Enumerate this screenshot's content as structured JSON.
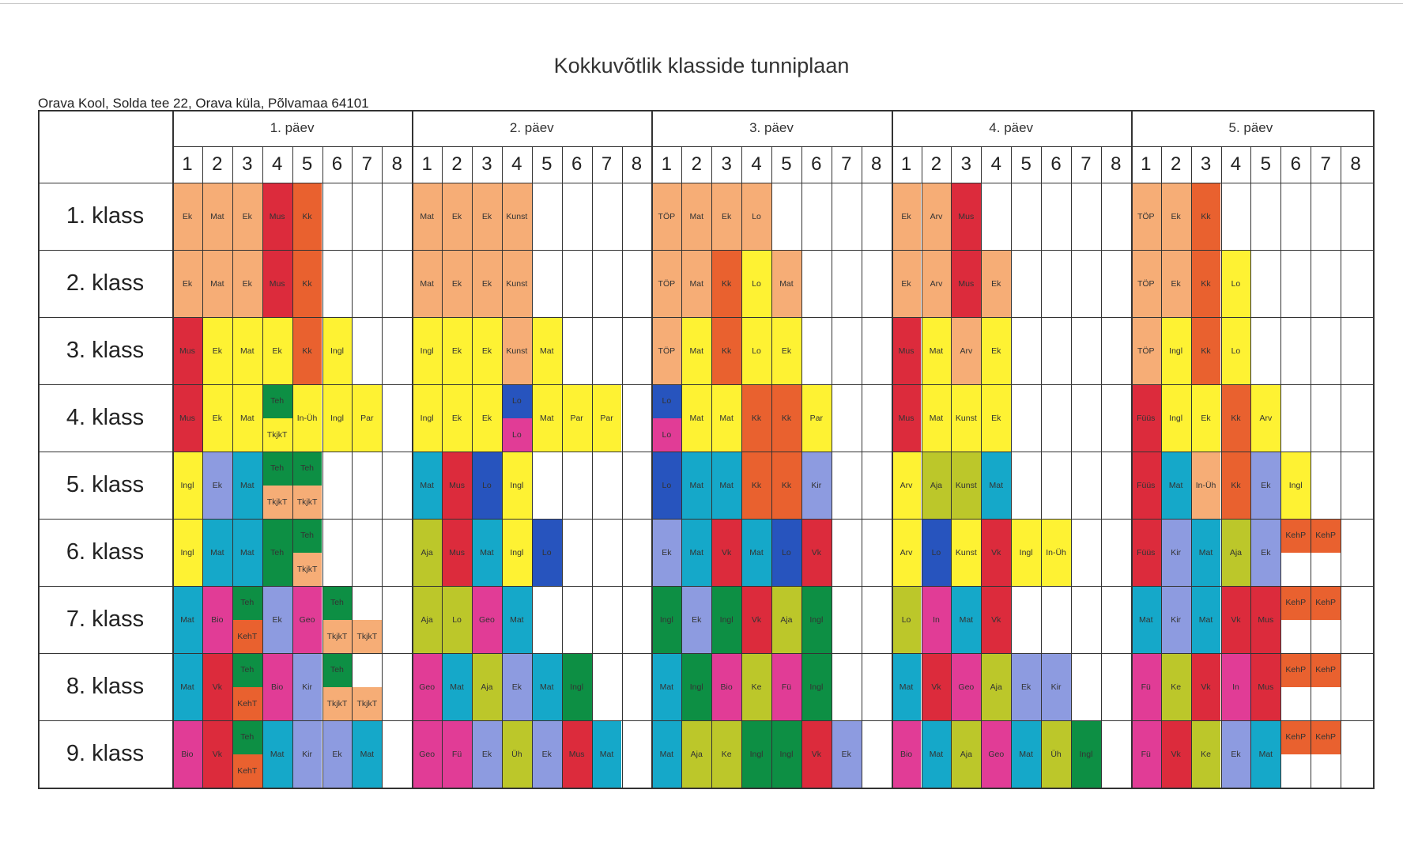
{
  "title": "Kokkuvõtlik klasside tunniplaan",
  "subtitle": "Orava Kool, Solda tee 22, Orava küla, Põlvamaa 64101",
  "days": [
    "1. päev",
    "2. päev",
    "3. päev",
    "4. päev",
    "5. päev"
  ],
  "periods": [
    "1",
    "2",
    "3",
    "4",
    "5",
    "6",
    "7",
    "8"
  ],
  "classes": [
    "1. klass",
    "2. klass",
    "3. klass",
    "4. klass",
    "5. klass",
    "6. klass",
    "7. klass",
    "8. klass",
    "9. klass"
  ],
  "palette": {
    "o": "#f6ad76",
    "y": "#fef233",
    "r": "#dc2b3c",
    "d": "#e9612f",
    "t": "#15a8c9",
    "l": "#8d9be0",
    "b": "#2754be",
    "g": "#0d8f44",
    "m": "#e13c96",
    "k": "#bcc72a"
  },
  "schedule": [
    [
      [
        [
          "Ek",
          "o"
        ],
        [
          "Mat",
          "o"
        ],
        [
          "Ek",
          "o"
        ],
        [
          "Mus",
          "r"
        ],
        [
          "Kk",
          "d"
        ],
        null,
        null,
        null
      ],
      [
        [
          "Mat",
          "o"
        ],
        [
          "Ek",
          "o"
        ],
        [
          "Ek",
          "o"
        ],
        [
          "Kunst",
          "o"
        ],
        null,
        null,
        null,
        null
      ],
      [
        [
          "TÖP",
          "o"
        ],
        [
          "Mat",
          "o"
        ],
        [
          "Ek",
          "o"
        ],
        [
          "Lo",
          "o"
        ],
        null,
        null,
        null,
        null
      ],
      [
        [
          "Ek",
          "o"
        ],
        [
          "Arv",
          "o"
        ],
        [
          "Mus",
          "r"
        ],
        null,
        null,
        null,
        null,
        null
      ],
      [
        [
          "TÖP",
          "o"
        ],
        [
          "Ek",
          "o"
        ],
        [
          "Kk",
          "d"
        ],
        null,
        null,
        null,
        null,
        null
      ]
    ],
    [
      [
        [
          "Ek",
          "o"
        ],
        [
          "Mat",
          "o"
        ],
        [
          "Ek",
          "o"
        ],
        [
          "Mus",
          "r"
        ],
        [
          "Kk",
          "d"
        ],
        null,
        null,
        null
      ],
      [
        [
          "Mat",
          "o"
        ],
        [
          "Ek",
          "o"
        ],
        [
          "Ek",
          "o"
        ],
        [
          "Kunst",
          "o"
        ],
        null,
        null,
        null,
        null
      ],
      [
        [
          "TÖP",
          "o"
        ],
        [
          "Mat",
          "o"
        ],
        [
          "Kk",
          "d"
        ],
        [
          "Lo",
          "y"
        ],
        [
          "Mat",
          "o"
        ],
        null,
        null,
        null
      ],
      [
        [
          "Ek",
          "o"
        ],
        [
          "Arv",
          "o"
        ],
        [
          "Mus",
          "r"
        ],
        [
          "Ek",
          "o"
        ],
        null,
        null,
        null,
        null
      ],
      [
        [
          "TÖP",
          "o"
        ],
        [
          "Ek",
          "o"
        ],
        [
          "Kk",
          "d"
        ],
        [
          "Lo",
          "y"
        ],
        null,
        null,
        null,
        null
      ]
    ],
    [
      [
        [
          "Mus",
          "r"
        ],
        [
          "Ek",
          "y"
        ],
        [
          "Mat",
          "y"
        ],
        [
          "Ek",
          "y"
        ],
        [
          "Kk",
          "d"
        ],
        [
          "Ingl",
          "y"
        ],
        null,
        null
      ],
      [
        [
          "Ingl",
          "y"
        ],
        [
          "Ek",
          "y"
        ],
        [
          "Ek",
          "y"
        ],
        [
          "Kunst",
          "o"
        ],
        [
          "Mat",
          "y"
        ],
        null,
        null,
        null
      ],
      [
        [
          "TÖP",
          "o"
        ],
        [
          "Mat",
          "y"
        ],
        [
          "Kk",
          "d"
        ],
        [
          "Lo",
          "y"
        ],
        [
          "Ek",
          "y"
        ],
        null,
        null,
        null
      ],
      [
        [
          "Mus",
          "r"
        ],
        [
          "Mat",
          "y"
        ],
        [
          "Arv",
          "o"
        ],
        [
          "Ek",
          "y"
        ],
        null,
        null,
        null,
        null
      ],
      [
        [
          "TÖP",
          "o"
        ],
        [
          "Ingl",
          "y"
        ],
        [
          "Kk",
          "d"
        ],
        [
          "Lo",
          "y"
        ],
        null,
        null,
        null,
        null
      ]
    ],
    [
      [
        [
          "Mus",
          "r"
        ],
        [
          "Ek",
          "y"
        ],
        [
          "Mat",
          "y"
        ],
        [
          [
            "Teh",
            "g"
          ],
          [
            "TkjkT",
            "y"
          ]
        ],
        [
          "In-Üh",
          "y"
        ],
        [
          "Ingl",
          "y"
        ],
        [
          "Par",
          "y"
        ],
        null
      ],
      [
        [
          "Ingl",
          "y"
        ],
        [
          "Ek",
          "y"
        ],
        [
          "Ek",
          "y"
        ],
        [
          [
            "Lo",
            "b"
          ],
          [
            "Lo",
            "m"
          ]
        ],
        [
          "Mat",
          "y"
        ],
        [
          "Par",
          "y"
        ],
        [
          "Par",
          "y"
        ],
        null
      ],
      [
        [
          [
            "Lo",
            "b"
          ],
          [
            "Lo",
            "m"
          ]
        ],
        [
          "Mat",
          "y"
        ],
        [
          "Mat",
          "y"
        ],
        [
          "Kk",
          "d"
        ],
        [
          "Kk",
          "d"
        ],
        [
          "Par",
          "y"
        ],
        null,
        null
      ],
      [
        [
          "Mus",
          "r"
        ],
        [
          "Mat",
          "y"
        ],
        [
          "Kunst",
          "y"
        ],
        [
          "Ek",
          "y"
        ],
        null,
        null,
        null,
        null
      ],
      [
        [
          "Füüs",
          "r"
        ],
        [
          "Ingl",
          "y"
        ],
        [
          "Ek",
          "y"
        ],
        [
          "Kk",
          "d"
        ],
        [
          "Arv",
          "y"
        ],
        null,
        null,
        null
      ]
    ],
    [
      [
        [
          "Ingl",
          "y"
        ],
        [
          "Ek",
          "l"
        ],
        [
          "Mat",
          "t"
        ],
        [
          [
            "Teh",
            "g"
          ],
          [
            "TkjkT",
            "o"
          ]
        ],
        [
          [
            "Teh",
            "g"
          ],
          [
            "TkjkT",
            "o"
          ]
        ],
        null,
        null,
        null
      ],
      [
        [
          "Mat",
          "t"
        ],
        [
          "Mus",
          "r"
        ],
        [
          "Lo",
          "b"
        ],
        [
          "Ingl",
          "y"
        ],
        null,
        null,
        null,
        null
      ],
      [
        [
          "Lo",
          "b"
        ],
        [
          "Mat",
          "t"
        ],
        [
          "Mat",
          "t"
        ],
        [
          "Kk",
          "d"
        ],
        [
          "Kk",
          "d"
        ],
        [
          "Kir",
          "l"
        ],
        null,
        null
      ],
      [
        [
          "Arv",
          "y"
        ],
        [
          "Aja",
          "k"
        ],
        [
          "Kunst",
          "k"
        ],
        [
          "Mat",
          "t"
        ],
        null,
        null,
        null,
        null
      ],
      [
        [
          "Füüs",
          "r"
        ],
        [
          "Mat",
          "t"
        ],
        [
          "In-Üh",
          "o"
        ],
        [
          "Kk",
          "d"
        ],
        [
          "Ek",
          "l"
        ],
        [
          "Ingl",
          "y"
        ],
        null,
        null
      ]
    ],
    [
      [
        [
          "Ingl",
          "y"
        ],
        [
          "Mat",
          "t"
        ],
        [
          "Mat",
          "t"
        ],
        [
          "Teh",
          "g"
        ],
        [
          [
            "Teh",
            "g"
          ],
          [
            "TkjkT",
            "o"
          ]
        ],
        null,
        null,
        null
      ],
      [
        [
          "Aja",
          "k"
        ],
        [
          "Mus",
          "r"
        ],
        [
          "Mat",
          "t"
        ],
        [
          "Ingl",
          "y"
        ],
        [
          "Lo",
          "b"
        ],
        null,
        null,
        null
      ],
      [
        [
          "Ek",
          "l"
        ],
        [
          "Mat",
          "t"
        ],
        [
          "Vk",
          "r"
        ],
        [
          "Mat",
          "t"
        ],
        [
          "Lo",
          "b"
        ],
        [
          "Vk",
          "r"
        ],
        null,
        null
      ],
      [
        [
          "Arv",
          "y"
        ],
        [
          "Lo",
          "b"
        ],
        [
          "Kunst",
          "y"
        ],
        [
          "Vk",
          "r"
        ],
        [
          "Ingl",
          "y"
        ],
        [
          "In-Üh",
          "y"
        ],
        null,
        null
      ],
      [
        [
          "Füüs",
          "r"
        ],
        [
          "Kir",
          "l"
        ],
        [
          "Mat",
          "t"
        ],
        [
          "Aja",
          "k"
        ],
        [
          "Ek",
          "l"
        ],
        [
          [
            "KehP",
            "d"
          ],
          null
        ],
        [
          [
            "KehP",
            "d"
          ],
          null
        ],
        null
      ]
    ],
    [
      [
        [
          "Mat",
          "t"
        ],
        [
          "Bio",
          "m"
        ],
        [
          [
            "Teh",
            "g"
          ],
          [
            "KehT",
            "d"
          ]
        ],
        [
          "Ek",
          "l"
        ],
        [
          "Geo",
          "m"
        ],
        [
          [
            "Teh",
            "g"
          ],
          [
            "TkjkT",
            "o"
          ]
        ],
        [
          null,
          [
            "TkjkT",
            "o"
          ]
        ],
        null
      ],
      [
        [
          "Aja",
          "k"
        ],
        [
          "Lo",
          "k"
        ],
        [
          "Geo",
          "m"
        ],
        [
          "Mat",
          "t"
        ],
        null,
        null,
        null,
        null
      ],
      [
        [
          "Ingl",
          "g"
        ],
        [
          "Ek",
          "l"
        ],
        [
          "Ingl",
          "g"
        ],
        [
          "Vk",
          "r"
        ],
        [
          "Aja",
          "k"
        ],
        [
          "Ingl",
          "g"
        ],
        null,
        null
      ],
      [
        [
          "Lo",
          "k"
        ],
        [
          "In",
          "m"
        ],
        [
          "Mat",
          "t"
        ],
        [
          "Vk",
          "r"
        ],
        null,
        null,
        null,
        null
      ],
      [
        [
          "Mat",
          "t"
        ],
        [
          "Kir",
          "l"
        ],
        [
          "Mat",
          "t"
        ],
        [
          "Vk",
          "r"
        ],
        [
          "Mus",
          "r"
        ],
        [
          [
            "KehP",
            "d"
          ],
          null
        ],
        [
          [
            "KehP",
            "d"
          ],
          null
        ],
        null
      ]
    ],
    [
      [
        [
          "Mat",
          "t"
        ],
        [
          "Vk",
          "r"
        ],
        [
          [
            "Teh",
            "g"
          ],
          [
            "KehT",
            "d"
          ]
        ],
        [
          "Bio",
          "m"
        ],
        [
          "Kir",
          "l"
        ],
        [
          [
            "Teh",
            "g"
          ],
          [
            "TkjkT",
            "o"
          ]
        ],
        [
          null,
          [
            "TkjkT",
            "o"
          ]
        ],
        null
      ],
      [
        [
          "Geo",
          "m"
        ],
        [
          "Mat",
          "t"
        ],
        [
          "Aja",
          "k"
        ],
        [
          "Ek",
          "l"
        ],
        [
          "Mat",
          "t"
        ],
        [
          "Ingl",
          "g"
        ],
        null,
        null
      ],
      [
        [
          "Mat",
          "t"
        ],
        [
          "Ingl",
          "g"
        ],
        [
          "Bio",
          "m"
        ],
        [
          "Ke",
          "k"
        ],
        [
          "Fü",
          "m"
        ],
        [
          "Ingl",
          "g"
        ],
        null,
        null
      ],
      [
        [
          "Mat",
          "t"
        ],
        [
          "Vk",
          "r"
        ],
        [
          "Geo",
          "m"
        ],
        [
          "Aja",
          "k"
        ],
        [
          "Ek",
          "l"
        ],
        [
          "Kir",
          "l"
        ],
        null,
        null
      ],
      [
        [
          "Fü",
          "m"
        ],
        [
          "Ke",
          "k"
        ],
        [
          "Vk",
          "r"
        ],
        [
          "In",
          "m"
        ],
        [
          "Mus",
          "r"
        ],
        [
          [
            "KehP",
            "d"
          ],
          null
        ],
        [
          [
            "KehP",
            "d"
          ],
          null
        ],
        null
      ]
    ],
    [
      [
        [
          "Bio",
          "m"
        ],
        [
          "Vk",
          "r"
        ],
        [
          [
            "Teh",
            "g"
          ],
          [
            "KehT",
            "d"
          ]
        ],
        [
          "Mat",
          "t"
        ],
        [
          "Kir",
          "l"
        ],
        [
          "Ek",
          "l"
        ],
        [
          "Mat",
          "t"
        ],
        null
      ],
      [
        [
          "Geo",
          "m"
        ],
        [
          "Fü",
          "m"
        ],
        [
          "Ek",
          "l"
        ],
        [
          "Üh",
          "k"
        ],
        [
          "Ek",
          "l"
        ],
        [
          "Mus",
          "r"
        ],
        [
          "Mat",
          "t"
        ],
        null
      ],
      [
        [
          "Mat",
          "t"
        ],
        [
          "Aja",
          "k"
        ],
        [
          "Ke",
          "k"
        ],
        [
          "Ingl",
          "g"
        ],
        [
          "Ingl",
          "g"
        ],
        [
          "Vk",
          "r"
        ],
        [
          "Ek",
          "l"
        ],
        null
      ],
      [
        [
          "Bio",
          "m"
        ],
        [
          "Mat",
          "t"
        ],
        [
          "Aja",
          "k"
        ],
        [
          "Geo",
          "m"
        ],
        [
          "Mat",
          "t"
        ],
        [
          "Üh",
          "k"
        ],
        [
          "Ingl",
          "g"
        ],
        null
      ],
      [
        [
          "Fü",
          "m"
        ],
        [
          "Vk",
          "r"
        ],
        [
          "Ke",
          "k"
        ],
        [
          "Ek",
          "l"
        ],
        [
          "Mat",
          "t"
        ],
        [
          [
            "KehP",
            "d"
          ],
          null
        ],
        [
          [
            "KehP",
            "d"
          ],
          null
        ],
        null
      ]
    ]
  ]
}
